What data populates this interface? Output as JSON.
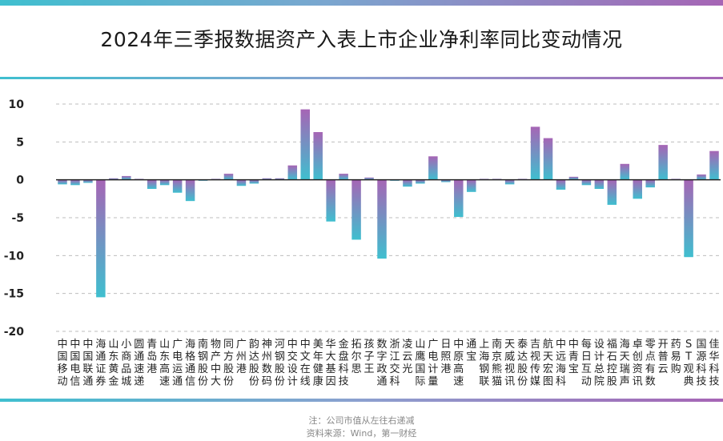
{
  "title": "2024年三季报数据资产入表上市企业净利率同比变动情况",
  "notes": {
    "line1": "注：公司市值从左往右递减",
    "line2": "资料来源：Wind，第一财经"
  },
  "colors": {
    "bar_top": "#a665b5",
    "bar_bottom": "#3fbfcf",
    "grid": "#bdbdbd"
  },
  "chart_data": {
    "type": "bar",
    "ylim": [
      -20,
      10
    ],
    "yticks": [
      10,
      5,
      0,
      -5,
      -10,
      -15,
      -20
    ],
    "grid": true,
    "categories": [
      "中国移动",
      "中国电信",
      "中国联通",
      "海通证券",
      "山东黄金",
      "小商品城",
      "圆通速递",
      "青岛港",
      "山东高速",
      "广电运通",
      "海格通信",
      "南钢股份",
      "物产中大",
      "同方股份",
      "广州港",
      "韵达股份",
      "神州数码",
      "河钢股份",
      "中交设计",
      "中文在线",
      "美年健康",
      "华大基因",
      "金盘科技",
      "拓尔思",
      "孩子王",
      "数字政通",
      "浙江交科",
      "凌云光",
      "山鹰国际",
      "广电计量",
      "日照港",
      "中原高速",
      "通宝",
      "上海钢联",
      "南京熊猫",
      "天威视讯",
      "泰达股份",
      "吉视传媒",
      "航天宏图",
      "中远海科",
      "中青宝",
      "每日互动",
      "设计总院",
      "福石控股",
      "海天瑞声",
      "卓创资讯",
      "零点有数",
      "开普云",
      "药易购",
      "ST观典",
      "国源科技",
      "佳华科技"
    ],
    "values": [
      -0.6,
      -0.7,
      -0.4,
      -15.5,
      0.2,
      0.5,
      0.1,
      -1.2,
      -0.7,
      -1.7,
      -2.8,
      -0.1,
      0.1,
      0.8,
      -0.8,
      -0.5,
      0.2,
      0.2,
      1.9,
      9.3,
      6.3,
      -5.5,
      0.8,
      -7.9,
      0.3,
      -10.4,
      -0.1,
      -0.9,
      -0.5,
      3.1,
      -0.3,
      -4.9,
      -1.6,
      0.0,
      0.1,
      -0.6,
      0.0,
      7.0,
      5.5,
      -1.3,
      0.4,
      -0.7,
      -1.2,
      -3.3,
      2.1,
      -2.5,
      -1.0,
      4.6,
      0.1,
      -10.2,
      0.7,
      3.8
    ]
  }
}
